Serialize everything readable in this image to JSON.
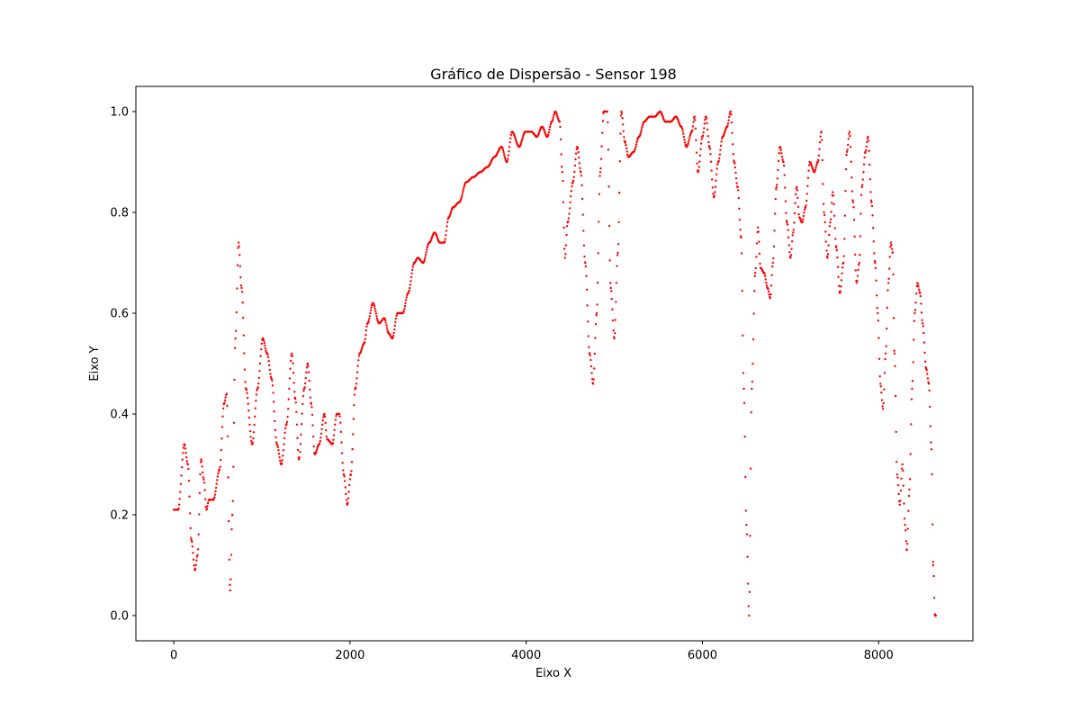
{
  "chart_data": {
    "type": "scatter",
    "title": "Gráfico de Dispersão - Sensor 198",
    "xlabel": "Eixo X",
    "ylabel": "Eixo Y",
    "xlim": [
      -430,
      9070
    ],
    "ylim": [
      -0.05,
      1.05
    ],
    "xticks": [
      0,
      2000,
      4000,
      6000,
      8000
    ],
    "yticks": [
      0.0,
      0.2,
      0.4,
      0.6,
      0.8,
      1.0
    ],
    "xtick_labels": [
      "0",
      "2000",
      "4000",
      "6000",
      "8000"
    ],
    "ytick_labels": [
      "0.0",
      "0.2",
      "0.4",
      "0.6",
      "0.8",
      "1.0"
    ],
    "grid": false,
    "marker_color": "#ff0000",
    "series": [
      {
        "x_range": [
          0,
          8650
        ],
        "points_profile": [
          [
            0,
            0.21
          ],
          [
            50,
            0.21
          ],
          [
            120,
            0.34
          ],
          [
            160,
            0.3
          ],
          [
            200,
            0.15
          ],
          [
            240,
            0.09
          ],
          [
            270,
            0.12
          ],
          [
            310,
            0.31
          ],
          [
            340,
            0.27
          ],
          [
            370,
            0.21
          ],
          [
            400,
            0.23
          ],
          [
            450,
            0.23
          ],
          [
            520,
            0.29
          ],
          [
            570,
            0.42
          ],
          [
            600,
            0.44
          ],
          [
            640,
            0.05
          ],
          [
            665,
            0.2
          ],
          [
            700,
            0.55
          ],
          [
            735,
            0.74
          ],
          [
            770,
            0.65
          ],
          [
            820,
            0.45
          ],
          [
            890,
            0.34
          ],
          [
            950,
            0.45
          ],
          [
            1010,
            0.55
          ],
          [
            1060,
            0.52
          ],
          [
            1110,
            0.47
          ],
          [
            1170,
            0.34
          ],
          [
            1220,
            0.3
          ],
          [
            1280,
            0.38
          ],
          [
            1340,
            0.52
          ],
          [
            1380,
            0.43
          ],
          [
            1420,
            0.31
          ],
          [
            1480,
            0.45
          ],
          [
            1520,
            0.5
          ],
          [
            1560,
            0.42
          ],
          [
            1600,
            0.32
          ],
          [
            1650,
            0.34
          ],
          [
            1710,
            0.4
          ],
          [
            1740,
            0.35
          ],
          [
            1800,
            0.34
          ],
          [
            1850,
            0.4
          ],
          [
            1880,
            0.4
          ],
          [
            1930,
            0.28
          ],
          [
            1970,
            0.22
          ],
          [
            2010,
            0.28
          ],
          [
            2060,
            0.45
          ],
          [
            2110,
            0.52
          ],
          [
            2160,
            0.54
          ],
          [
            2200,
            0.58
          ],
          [
            2260,
            0.62
          ],
          [
            2330,
            0.58
          ],
          [
            2390,
            0.59
          ],
          [
            2440,
            0.56
          ],
          [
            2480,
            0.55
          ],
          [
            2540,
            0.6
          ],
          [
            2600,
            0.6
          ],
          [
            2660,
            0.64
          ],
          [
            2730,
            0.7
          ],
          [
            2770,
            0.71
          ],
          [
            2830,
            0.7
          ],
          [
            2900,
            0.74
          ],
          [
            2960,
            0.76
          ],
          [
            3020,
            0.74
          ],
          [
            3070,
            0.74
          ],
          [
            3120,
            0.79
          ],
          [
            3170,
            0.81
          ],
          [
            3240,
            0.82
          ],
          [
            3320,
            0.86
          ],
          [
            3400,
            0.87
          ],
          [
            3480,
            0.88
          ],
          [
            3560,
            0.89
          ],
          [
            3640,
            0.91
          ],
          [
            3720,
            0.93
          ],
          [
            3780,
            0.9
          ],
          [
            3840,
            0.96
          ],
          [
            3920,
            0.93
          ],
          [
            3990,
            0.96
          ],
          [
            4060,
            0.96
          ],
          [
            4120,
            0.95
          ],
          [
            4180,
            0.97
          ],
          [
            4240,
            0.95
          ],
          [
            4290,
            0.98
          ],
          [
            4330,
            1.0
          ],
          [
            4380,
            0.98
          ],
          [
            4410,
            0.88
          ],
          [
            4440,
            0.71
          ],
          [
            4470,
            0.78
          ],
          [
            4530,
            0.86
          ],
          [
            4580,
            0.93
          ],
          [
            4620,
            0.88
          ],
          [
            4670,
            0.7
          ],
          [
            4720,
            0.52
          ],
          [
            4760,
            0.46
          ],
          [
            4800,
            0.6
          ],
          [
            4840,
            0.88
          ],
          [
            4880,
            1.0
          ],
          [
            4920,
            1.0
          ],
          [
            4960,
            0.65
          ],
          [
            5000,
            0.55
          ],
          [
            5040,
            0.72
          ],
          [
            5080,
            1.0
          ],
          [
            5120,
            0.94
          ],
          [
            5160,
            0.91
          ],
          [
            5220,
            0.92
          ],
          [
            5280,
            0.95
          ],
          [
            5340,
            0.98
          ],
          [
            5400,
            0.99
          ],
          [
            5460,
            0.99
          ],
          [
            5520,
            1.0
          ],
          [
            5580,
            0.98
          ],
          [
            5640,
            0.98
          ],
          [
            5700,
            0.99
          ],
          [
            5760,
            0.97
          ],
          [
            5820,
            0.93
          ],
          [
            5880,
            0.96
          ],
          [
            5910,
            0.99
          ],
          [
            5950,
            0.88
          ],
          [
            6000,
            0.95
          ],
          [
            6040,
            0.99
          ],
          [
            6080,
            0.93
          ],
          [
            6130,
            0.83
          ],
          [
            6180,
            0.9
          ],
          [
            6230,
            0.95
          ],
          [
            6280,
            0.97
          ],
          [
            6320,
            1.0
          ],
          [
            6360,
            0.9
          ],
          [
            6400,
            0.85
          ],
          [
            6440,
            0.75
          ],
          [
            6470,
            0.45
          ],
          [
            6500,
            0.18
          ],
          [
            6530,
            0.0
          ],
          [
            6560,
            0.45
          ],
          [
            6600,
            0.68
          ],
          [
            6630,
            0.77
          ],
          [
            6660,
            0.69
          ],
          [
            6700,
            0.68
          ],
          [
            6740,
            0.65
          ],
          [
            6770,
            0.63
          ],
          [
            6800,
            0.7
          ],
          [
            6840,
            0.85
          ],
          [
            6880,
            0.93
          ],
          [
            6920,
            0.9
          ],
          [
            6960,
            0.78
          ],
          [
            7000,
            0.71
          ],
          [
            7030,
            0.76
          ],
          [
            7070,
            0.85
          ],
          [
            7100,
            0.79
          ],
          [
            7130,
            0.78
          ],
          [
            7170,
            0.81
          ],
          [
            7220,
            0.9
          ],
          [
            7270,
            0.88
          ],
          [
            7310,
            0.9
          ],
          [
            7350,
            0.96
          ],
          [
            7380,
            0.8
          ],
          [
            7420,
            0.71
          ],
          [
            7450,
            0.78
          ],
          [
            7480,
            0.84
          ],
          [
            7520,
            0.73
          ],
          [
            7560,
            0.64
          ],
          [
            7600,
            0.7
          ],
          [
            7640,
            0.92
          ],
          [
            7670,
            0.96
          ],
          [
            7710,
            0.82
          ],
          [
            7750,
            0.66
          ],
          [
            7780,
            0.7
          ],
          [
            7810,
            0.85
          ],
          [
            7850,
            0.92
          ],
          [
            7880,
            0.95
          ],
          [
            7920,
            0.82
          ],
          [
            7960,
            0.7
          ],
          [
            7990,
            0.6
          ],
          [
            8020,
            0.46
          ],
          [
            8050,
            0.41
          ],
          [
            8080,
            0.52
          ],
          [
            8110,
            0.66
          ],
          [
            8140,
            0.74
          ],
          [
            8160,
            0.72
          ],
          [
            8180,
            0.52
          ],
          [
            8210,
            0.28
          ],
          [
            8240,
            0.22
          ],
          [
            8270,
            0.3
          ],
          [
            8300,
            0.18
          ],
          [
            8320,
            0.13
          ],
          [
            8350,
            0.25
          ],
          [
            8380,
            0.45
          ],
          [
            8410,
            0.6
          ],
          [
            8440,
            0.66
          ],
          [
            8470,
            0.64
          ],
          [
            8500,
            0.58
          ],
          [
            8540,
            0.49
          ],
          [
            8570,
            0.46
          ],
          [
            8600,
            0.33
          ],
          [
            8620,
            0.1
          ],
          [
            8640,
            0.0
          ],
          [
            8650,
            0.0
          ]
        ]
      }
    ]
  }
}
